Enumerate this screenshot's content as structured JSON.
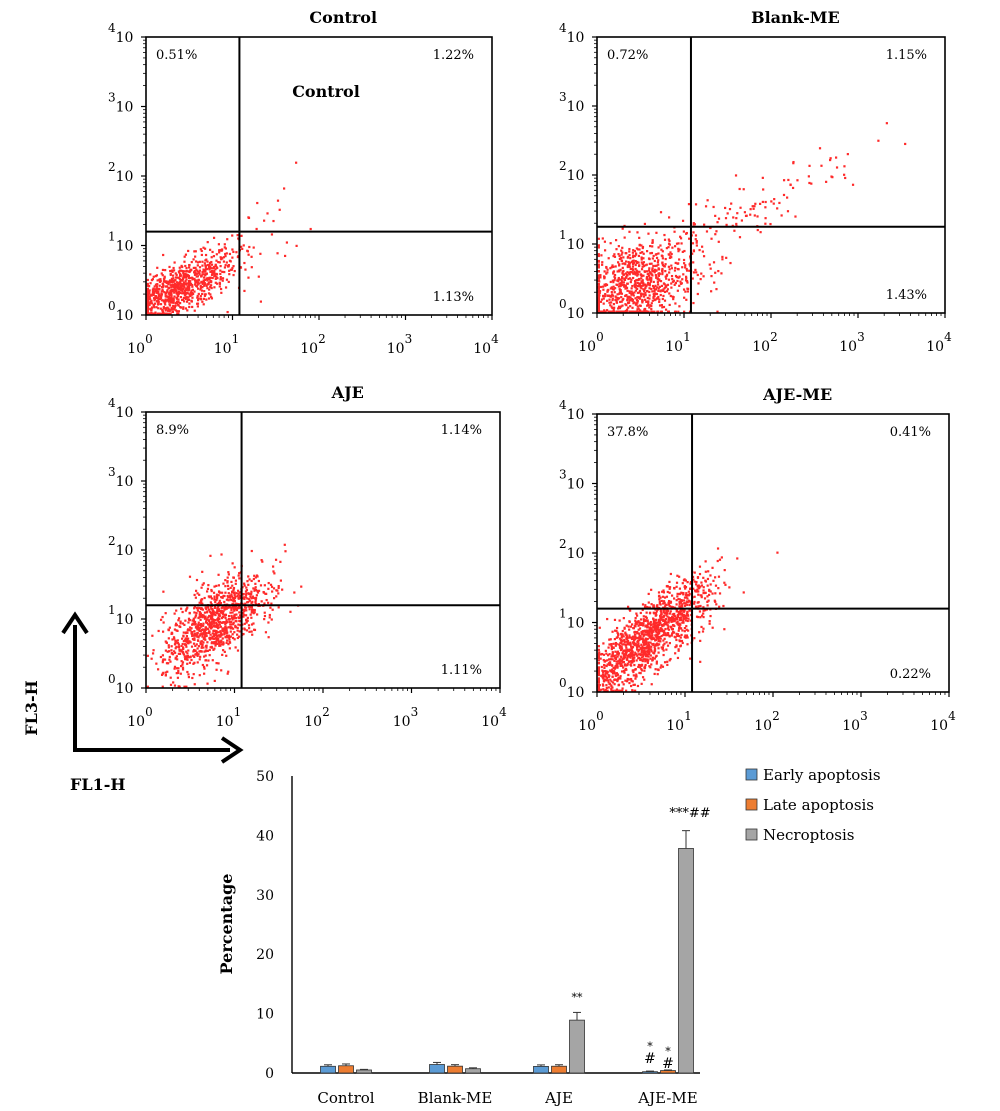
{
  "flow_panels": [
    {
      "title": "Control",
      "inset_label": "Control",
      "quadrants": {
        "upper_left": "0.51%",
        "upper_right": "1.22%",
        "lower_right": "1.13%"
      },
      "gate": {
        "fl1_log10": 1.08,
        "fl3_log10": 1.2
      }
    },
    {
      "title": "Blank-ME",
      "inset_label": "",
      "quadrants": {
        "upper_left": "0.72%",
        "upper_right": "1.15%",
        "lower_right": "1.43%"
      },
      "gate": {
        "fl1_log10": 1.08,
        "fl3_log10": 1.25
      }
    },
    {
      "title": "AJE",
      "inset_label": "",
      "quadrants": {
        "upper_left": "8.9%",
        "upper_right": "1.14%",
        "lower_right": "1.11%"
      },
      "gate": {
        "fl1_log10": 1.08,
        "fl3_log10": 1.2
      }
    },
    {
      "title": "AJE-ME",
      "inset_label": "",
      "quadrants": {
        "upper_left": "37.8%",
        "upper_right": "0.41%",
        "lower_right": "0.22%"
      },
      "gate": {
        "fl1_log10": 1.08,
        "fl3_log10": 1.2
      }
    }
  ],
  "flow_axis_ticks": [
    {
      "base": "10",
      "exp": "0"
    },
    {
      "base": "10",
      "exp": "1"
    },
    {
      "base": "10",
      "exp": "2"
    },
    {
      "base": "10",
      "exp": "3"
    },
    {
      "base": "10",
      "exp": "4"
    }
  ],
  "axis_arrows": {
    "x_label": "FL1-H",
    "y_label": "FL3-H"
  },
  "colors": {
    "dots": "#ff2a2a",
    "early": "#5b9bd5",
    "late": "#ed7d31",
    "necro": "#a5a5a5",
    "axis": "#000000"
  },
  "chart_data": {
    "type": "bar",
    "title": "",
    "xlabel": "",
    "ylabel": "Percentage",
    "ylim": [
      0,
      50
    ],
    "yticks": [
      0,
      10,
      20,
      30,
      40,
      50
    ],
    "categories": [
      "Control",
      "Blank-ME",
      "AJE",
      "AJE-ME"
    ],
    "series": [
      {
        "name": "Early apoptosis",
        "color": "#5b9bd5",
        "values": [
          1.13,
          1.43,
          1.11,
          0.22
        ],
        "errors": [
          0.25,
          0.35,
          0.25,
          0.1
        ]
      },
      {
        "name": "Late apoptosis",
        "color": "#ed7d31",
        "values": [
          1.22,
          1.15,
          1.14,
          0.41
        ],
        "errors": [
          0.3,
          0.25,
          0.25,
          0.1
        ]
      },
      {
        "name": "Necroptosis",
        "color": "#a5a5a5",
        "values": [
          0.51,
          0.72,
          8.9,
          37.8
        ],
        "errors": [
          0.1,
          0.15,
          1.3,
          3.0
        ]
      }
    ],
    "annotations": [
      {
        "category": "AJE",
        "series": "Necroptosis",
        "text": "**"
      },
      {
        "category": "AJE-ME",
        "series": "Early apoptosis",
        "text": "*"
      },
      {
        "category": "AJE-ME",
        "series": "Early apoptosis",
        "text": "#"
      },
      {
        "category": "AJE-ME",
        "series": "Late apoptosis",
        "text": "*"
      },
      {
        "category": "AJE-ME",
        "series": "Late apoptosis",
        "text": "#"
      },
      {
        "category": "AJE-ME",
        "series": "Necroptosis",
        "text": "***##"
      }
    ],
    "legend": "top-right",
    "grid": false
  }
}
